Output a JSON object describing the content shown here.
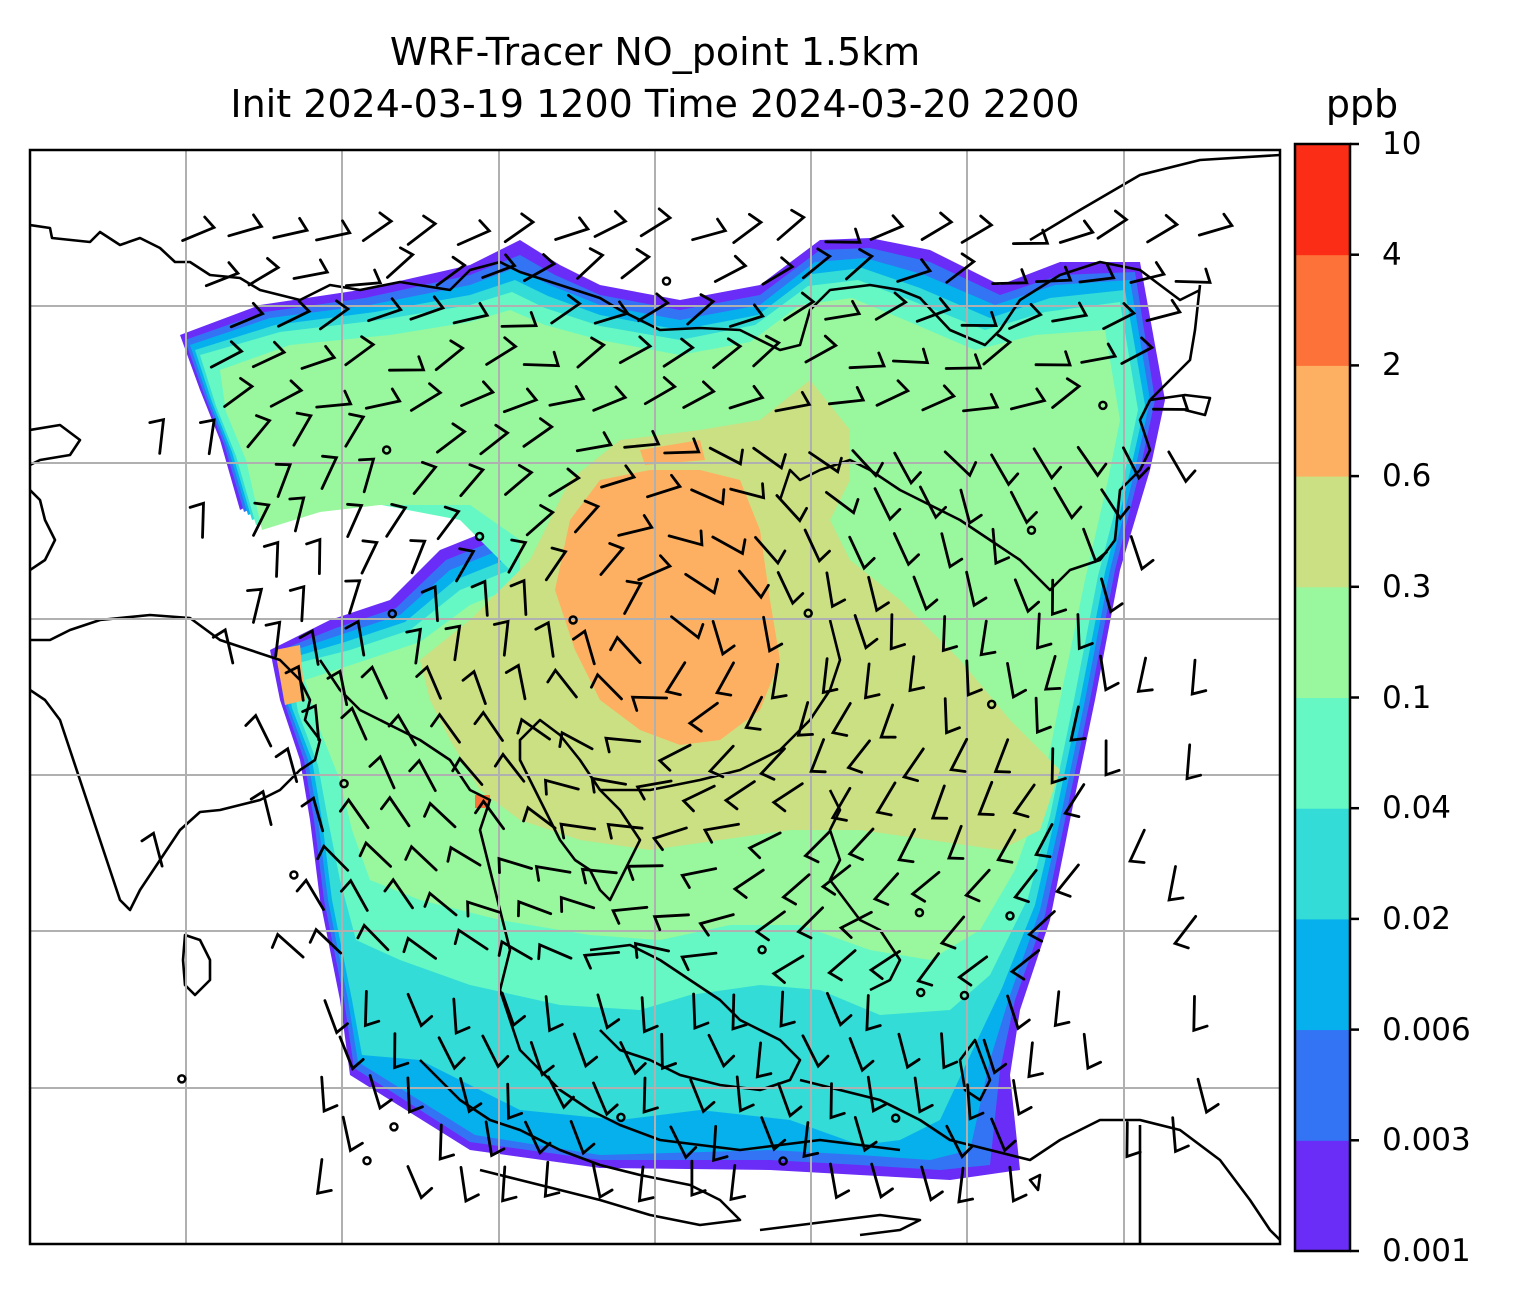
{
  "title_line1": "WRF-Tracer NO_point 1.5km",
  "title_line2": "Init 2024-03-19 1200 Time 2024-03-20 2200",
  "colorbar": {
    "unit": "ppb",
    "ticks": [
      "0.001",
      "0.003",
      "0.006",
      "0.02",
      "0.04",
      "0.1",
      "0.3",
      "0.6",
      "2",
      "4",
      "10"
    ],
    "colors": [
      "#6a2df7",
      "#3374f5",
      "#06b0ec",
      "#33dcd6",
      "#65f8c4",
      "#99f79e",
      "#cbe082",
      "#fdb061",
      "#fd7238",
      "#fb2d16"
    ]
  },
  "field_colors": {
    "ocean": "#ffffff",
    "coast": "#000000",
    "grid": "#b0b0b0"
  }
}
